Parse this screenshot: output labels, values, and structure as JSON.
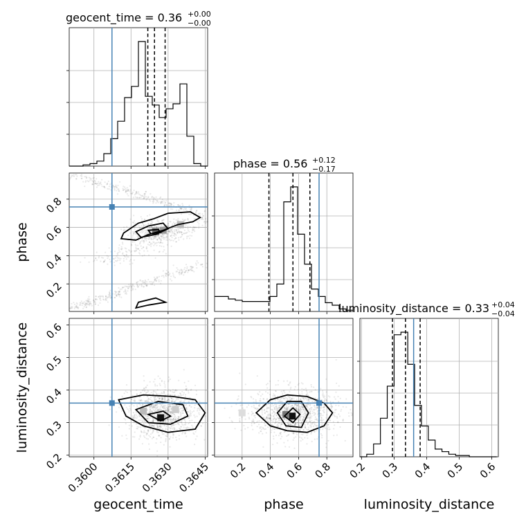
{
  "chart_data": {
    "type": "corner",
    "colors": {
      "truth": "#4682b4",
      "hist": "#000000",
      "grid": "#b0b0b0",
      "samples": "#000000"
    },
    "parameters": [
      {
        "name": "geocent_time",
        "title_main": "geocent_time = 0.36",
        "title_plus": "+0.00",
        "title_minus": "−0.00",
        "range": [
          0.359,
          0.3646
        ],
        "ticks": [
          0.36,
          0.3615,
          0.363,
          0.3645
        ],
        "tick_labels": [
          "0.3600",
          "0.3615",
          "0.3630",
          "0.3645"
        ],
        "quantiles": [
          0.36218,
          0.36245,
          0.36288
        ],
        "truth": 0.36073
      },
      {
        "name": "phase",
        "title_main": "phase = 0.56",
        "title_plus": "+0.12",
        "title_minus": "−0.17",
        "range": [
          0.005,
          0.985
        ],
        "ticks": [
          0.2,
          0.4,
          0.6,
          0.8
        ],
        "tick_labels": [
          "0.2",
          "0.4",
          "0.6",
          "0.8"
        ],
        "quantiles": [
          0.39,
          0.56,
          0.68
        ],
        "truth": 0.745
      },
      {
        "name": "luminosity_distance",
        "title_main": "luminosity_distance = 0.33",
        "title_plus": "+0.04",
        "title_minus": "−0.04",
        "range": [
          0.195,
          0.62
        ],
        "ticks": [
          0.2,
          0.3,
          0.4,
          0.5,
          0.6
        ],
        "tick_labels": [
          "0.2",
          "0.3",
          "0.4",
          "0.5",
          "0.6"
        ],
        "quantiles": [
          0.295,
          0.335,
          0.38
        ],
        "truth": 0.36
      }
    ],
    "histograms": [
      {
        "param": "geocent_time",
        "bin_edges": [
          0.359,
          0.35928,
          0.35956,
          0.35984,
          0.36012,
          0.3604,
          0.36068,
          0.36096,
          0.36124,
          0.36152,
          0.3618,
          0.36208,
          0.36236,
          0.36264,
          0.36292,
          0.3632,
          0.36348,
          0.36376,
          0.36404,
          0.36432,
          0.3646
        ],
        "values": [
          0,
          0,
          0.01,
          0.02,
          0.04,
          0.1,
          0.22,
          0.36,
          0.55,
          0.64,
          1.0,
          0.56,
          0.49,
          0.39,
          0.46,
          0.5,
          0.66,
          0.24,
          0.02,
          0
        ]
      },
      {
        "param": "phase",
        "bin_edges": [
          0.005,
          0.054,
          0.103,
          0.152,
          0.201,
          0.25,
          0.299,
          0.348,
          0.397,
          0.446,
          0.495,
          0.544,
          0.593,
          0.642,
          0.691,
          0.74,
          0.789,
          0.838,
          0.887,
          0.936,
          0.985
        ],
        "values": [
          0.12,
          0.12,
          0.1,
          0.09,
          0.08,
          0.08,
          0.08,
          0.08,
          0.12,
          0.22,
          0.88,
          1.0,
          0.62,
          0.38,
          0.18,
          0.12,
          0.07,
          0.05,
          0.02,
          0.01
        ]
      },
      {
        "param": "luminosity_distance",
        "bin_edges": [
          0.195,
          0.216,
          0.237,
          0.258,
          0.279,
          0.3,
          0.321,
          0.342,
          0.363,
          0.384,
          0.405,
          0.426,
          0.447,
          0.468,
          0.489,
          0.51,
          0.531,
          0.552,
          0.573,
          0.594,
          0.615
        ],
        "values": [
          0,
          0.02,
          0.1,
          0.3,
          0.55,
          0.95,
          0.97,
          0.72,
          0.4,
          0.24,
          0.13,
          0.06,
          0.04,
          0.02,
          0.01,
          0.01,
          0,
          0,
          0,
          0
        ]
      }
    ],
    "pairs": [
      {
        "x": "geocent_time",
        "y": "phase"
      },
      {
        "x": "geocent_time",
        "y": "luminosity_distance"
      },
      {
        "x": "phase",
        "y": "luminosity_distance"
      }
    ],
    "axis_labels": {
      "x": [
        "geocent_time",
        "phase",
        "luminosity_distance"
      ],
      "y": [
        "phase",
        "luminosity_distance"
      ]
    }
  }
}
